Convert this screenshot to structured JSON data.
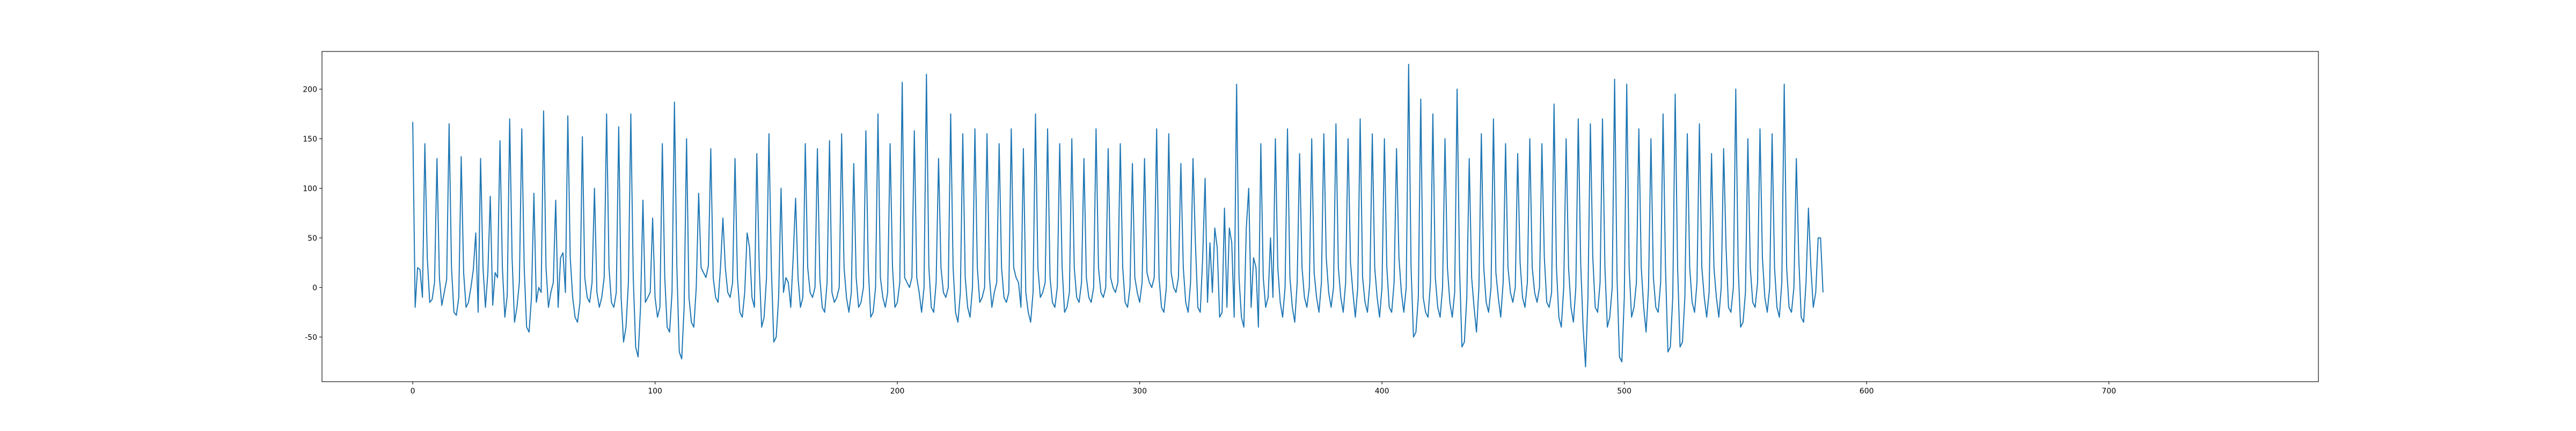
{
  "chart_data": {
    "type": "line",
    "series": [
      {
        "color": "#1f77b4",
        "values": [
          167,
          -20,
          20,
          18,
          -10,
          145,
          30,
          -15,
          -12,
          5,
          130,
          10,
          -18,
          -5,
          8,
          165,
          20,
          -25,
          -28,
          -10,
          132,
          15,
          -20,
          -15,
          0,
          18,
          55,
          -25,
          130,
          20,
          -20,
          15,
          92,
          -18,
          15,
          10,
          148,
          20,
          -30,
          -8,
          170,
          30,
          -35,
          -20,
          5,
          160,
          20,
          -40,
          -45,
          -10,
          95,
          -15,
          0,
          -5,
          178,
          20,
          -20,
          -5,
          5,
          88,
          -20,
          30,
          35,
          -5,
          173,
          30,
          -10,
          -30,
          -35,
          -15,
          152,
          10,
          -10,
          -15,
          5,
          100,
          -5,
          -20,
          -10,
          10,
          175,
          20,
          -15,
          -20,
          -5,
          162,
          -10,
          -55,
          -40,
          5,
          175,
          10,
          -60,
          -70,
          -20,
          88,
          -15,
          -10,
          -5,
          70,
          -10,
          -30,
          -20,
          145,
          10,
          -40,
          -45,
          -5,
          187,
          20,
          -65,
          -72,
          -20,
          150,
          -10,
          -35,
          -40,
          0,
          95,
          20,
          15,
          10,
          22,
          140,
          10,
          -10,
          -15,
          20,
          70,
          20,
          -5,
          -10,
          5,
          130,
          10,
          -25,
          -30,
          -5,
          55,
          40,
          -10,
          -20,
          135,
          20,
          -40,
          -30,
          10,
          155,
          20,
          -55,
          -50,
          -10,
          100,
          -5,
          10,
          5,
          -20,
          30,
          90,
          10,
          -20,
          -10,
          145,
          20,
          -5,
          -10,
          0,
          140,
          10,
          -20,
          -25,
          5,
          148,
          -5,
          -15,
          -10,
          0,
          155,
          20,
          -10,
          -25,
          -5,
          125,
          10,
          -20,
          -15,
          0,
          158,
          20,
          -30,
          -25,
          0,
          175,
          10,
          -10,
          -20,
          -5,
          145,
          20,
          -20,
          -15,
          5,
          207,
          10,
          5,
          0,
          10,
          158,
          10,
          -5,
          -25,
          0,
          215,
          20,
          -20,
          -25,
          5,
          130,
          20,
          -5,
          -10,
          0,
          175,
          20,
          -25,
          -35,
          -5,
          155,
          10,
          -20,
          -30,
          0,
          160,
          20,
          -15,
          -10,
          0,
          155,
          10,
          -20,
          -5,
          5,
          145,
          20,
          -10,
          -15,
          -5,
          160,
          20,
          10,
          5,
          -20,
          140,
          -5,
          -25,
          -35,
          -5,
          175,
          20,
          -10,
          -5,
          5,
          160,
          10,
          -15,
          -20,
          0,
          145,
          20,
          -25,
          -20,
          -5,
          150,
          20,
          -10,
          -15,
          5,
          130,
          10,
          -10,
          -15,
          0,
          160,
          20,
          -5,
          -10,
          0,
          140,
          10,
          0,
          -5,
          5,
          145,
          20,
          -15,
          -20,
          0,
          125,
          10,
          -5,
          -15,
          5,
          130,
          15,
          5,
          0,
          10,
          160,
          10,
          -20,
          -25,
          0,
          155,
          15,
          0,
          -5,
          10,
          125,
          20,
          -15,
          -25,
          5,
          130,
          45,
          -20,
          -25,
          30,
          110,
          -15,
          45,
          -5,
          60,
          40,
          -30,
          -25,
          80,
          -20,
          60,
          45,
          -30,
          205,
          10,
          -30,
          -40,
          60,
          100,
          -20,
          30,
          20,
          -40,
          145,
          10,
          -20,
          -10,
          50,
          -10,
          150,
          20,
          -15,
          -30,
          0,
          160,
          10,
          -20,
          -35,
          5,
          135,
          20,
          -10,
          -20,
          0,
          150,
          15,
          -10,
          -25,
          5,
          155,
          30,
          -5,
          -20,
          0,
          165,
          20,
          -10,
          -25,
          5,
          150,
          25,
          -5,
          -30,
          0,
          170,
          10,
          -15,
          -25,
          5,
          155,
          20,
          -10,
          -30,
          0,
          150,
          20,
          -20,
          -25,
          5,
          140,
          30,
          -5,
          -25,
          0,
          225,
          20,
          -50,
          -45,
          -10,
          190,
          -10,
          -25,
          -30,
          5,
          175,
          10,
          -20,
          -30,
          0,
          150,
          20,
          -15,
          -30,
          -5,
          200,
          20,
          -60,
          -55,
          -10,
          130,
          10,
          -20,
          -45,
          0,
          155,
          20,
          -15,
          -25,
          0,
          170,
          15,
          -10,
          -30,
          5,
          145,
          20,
          -5,
          -15,
          0,
          135,
          25,
          -10,
          -20,
          5,
          150,
          20,
          -5,
          -15,
          0,
          145,
          30,
          -15,
          -20,
          -5,
          185,
          20,
          -30,
          -40,
          0,
          150,
          20,
          -20,
          -35,
          0,
          170,
          25,
          -40,
          -80,
          -10,
          165,
          30,
          -20,
          -25,
          5,
          170,
          20,
          -40,
          -30,
          0,
          210,
          10,
          -70,
          -75,
          -10,
          205,
          20,
          -30,
          -20,
          5,
          160,
          20,
          -20,
          -45,
          0,
          150,
          10,
          -20,
          -25,
          5,
          175,
          20,
          -65,
          -60,
          -10,
          195,
          20,
          -60,
          -55,
          -10,
          155,
          20,
          -15,
          -25,
          5,
          165,
          20,
          -10,
          -30,
          -5,
          135,
          20,
          -10,
          -30,
          0,
          140,
          40,
          -20,
          -25,
          0,
          200,
          20,
          -40,
          -35,
          -5,
          150,
          20,
          -15,
          -20,
          5,
          160,
          30,
          -10,
          -25,
          0,
          155,
          20,
          -20,
          -30,
          5,
          205,
          20,
          -20,
          -25,
          0,
          130,
          30,
          -30,
          -35,
          5,
          80,
          20,
          -20,
          -5,
          50,
          50,
          -5
        ]
      }
    ],
    "xlim": [
      -37.45,
      786.45
    ],
    "xticks": [
      0,
      100,
      200,
      300,
      400,
      500,
      600,
      700
    ],
    "ylim": [
      -95,
      238
    ],
    "yticks": [
      -50,
      0,
      50,
      100,
      150,
      200
    ]
  }
}
